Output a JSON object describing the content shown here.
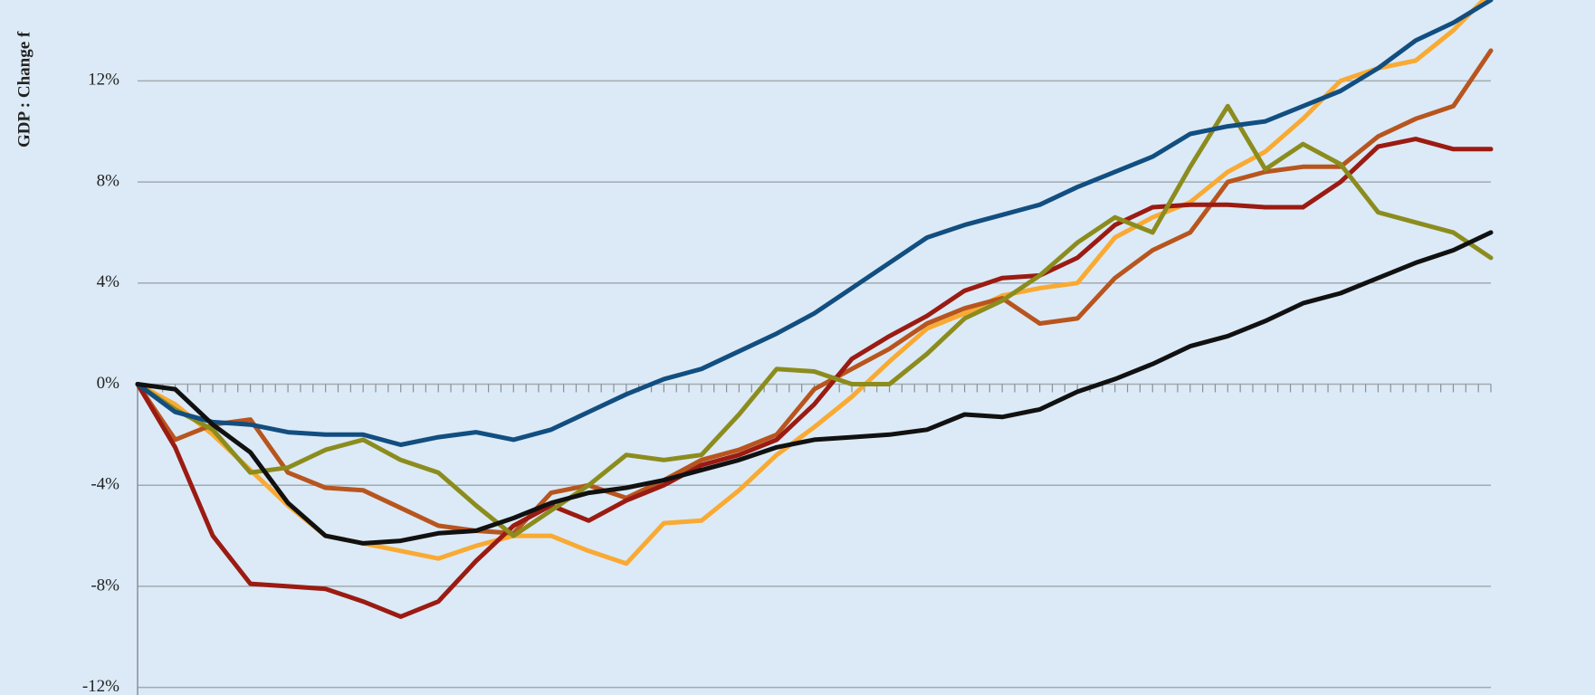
{
  "chart_data": {
    "type": "line",
    "y_label": "GDP : Change f",
    "categories": [
      null,
      null,
      null,
      null,
      null,
      null,
      null,
      null,
      null,
      null,
      null,
      null,
      null,
      null,
      null,
      null,
      null,
      null,
      null,
      null,
      null,
      null,
      null,
      null,
      null,
      null,
      null,
      null,
      null,
      null,
      null,
      null,
      null,
      null,
      null,
      null,
      null
    ],
    "ylim": [
      -12.3,
      15.2
    ],
    "yticks": [
      {
        "value": -12,
        "label": "-12%"
      },
      {
        "value": -8,
        "label": "-8%"
      },
      {
        "value": -4,
        "label": "-4%"
      },
      {
        "value": 0,
        "label": "0%"
      },
      {
        "value": 4,
        "label": "4%"
      },
      {
        "value": 8,
        "label": "8%"
      },
      {
        "value": 12,
        "label": "12%"
      }
    ],
    "grid": true,
    "series": [
      {
        "color": "#f9aa33",
        "values": [
          0,
          -0.8,
          -2.0,
          -3.4,
          -4.8,
          -6.0,
          -6.3,
          -6.6,
          -6.9,
          -6.4,
          -6.0,
          -6.0,
          -6.6,
          -7.1,
          -5.5,
          -5.4,
          -4.2,
          -2.8,
          -1.7,
          -0.5,
          0.9,
          2.2,
          2.8,
          3.5,
          3.8,
          4.0,
          5.8,
          6.6,
          7.2,
          8.4,
          9.2,
          10.5,
          12.0,
          12.5,
          12.8,
          14.0,
          15.5
        ]
      },
      {
        "color": "#b8551e",
        "values": [
          0,
          -2.2,
          -1.6,
          -1.4,
          -3.5,
          -4.1,
          -4.2,
          -4.9,
          -5.6,
          -5.8,
          -5.9,
          -4.3,
          -4.0,
          -4.5,
          -3.8,
          -3.0,
          -2.6,
          -2.0,
          -0.2,
          0.6,
          1.4,
          2.4,
          3.0,
          3.4,
          2.4,
          2.6,
          4.2,
          5.3,
          6.0,
          8.0,
          8.4,
          8.6,
          8.6,
          9.8,
          10.5,
          11.0,
          13.2
        ]
      },
      {
        "color": "#9b1b12",
        "values": [
          0,
          -2.5,
          -6.0,
          -7.9,
          -8.0,
          -8.1,
          -8.6,
          -9.2,
          -8.6,
          -7.0,
          -5.6,
          -4.8,
          -5.4,
          -4.6,
          -4.0,
          -3.2,
          -2.8,
          -2.2,
          -0.8,
          1.0,
          1.9,
          2.7,
          3.7,
          4.2,
          4.3,
          5.0,
          6.3,
          7.0,
          7.1,
          7.1,
          7.0,
          7.0,
          8.0,
          9.4,
          9.7,
          9.3,
          9.3
        ]
      },
      {
        "color": "#8c8c1e",
        "values": [
          0,
          -1.0,
          -1.8,
          -3.5,
          -3.3,
          -2.6,
          -2.2,
          -3.0,
          -3.5,
          -4.8,
          -6.0,
          -5.0,
          -4.0,
          -2.8,
          -3.0,
          -2.8,
          -1.2,
          0.6,
          0.5,
          0.0,
          0.0,
          1.2,
          2.6,
          3.3,
          4.3,
          5.6,
          6.6,
          6.0,
          8.6,
          11.0,
          8.5,
          9.5,
          8.7,
          6.8,
          6.4,
          6.0,
          5.0
        ]
      },
      {
        "color": "#124e80",
        "values": [
          0,
          -1.1,
          -1.5,
          -1.6,
          -1.9,
          -2.0,
          -2.0,
          -2.4,
          -2.1,
          -1.9,
          -2.2,
          -1.8,
          -1.1,
          -0.4,
          0.2,
          0.6,
          1.3,
          2.0,
          2.8,
          3.8,
          4.8,
          5.8,
          6.3,
          6.7,
          7.1,
          7.8,
          8.4,
          9.0,
          9.9,
          10.2,
          10.4,
          11.0,
          11.6,
          12.5,
          13.6,
          14.3,
          15.2
        ]
      },
      {
        "color": "#111111",
        "values": [
          0,
          -0.2,
          -1.6,
          -2.7,
          -4.7,
          -6.0,
          -6.3,
          -6.2,
          -5.9,
          -5.8,
          -5.3,
          -4.7,
          -4.3,
          -4.1,
          -3.8,
          -3.4,
          -3.0,
          -2.5,
          -2.2,
          -2.1,
          -2.0,
          -1.8,
          -1.2,
          -1.3,
          -1.0,
          -0.3,
          0.2,
          0.8,
          1.5,
          1.9,
          2.5,
          3.2,
          3.6,
          4.2,
          4.8,
          5.3,
          6.0
        ]
      }
    ]
  }
}
